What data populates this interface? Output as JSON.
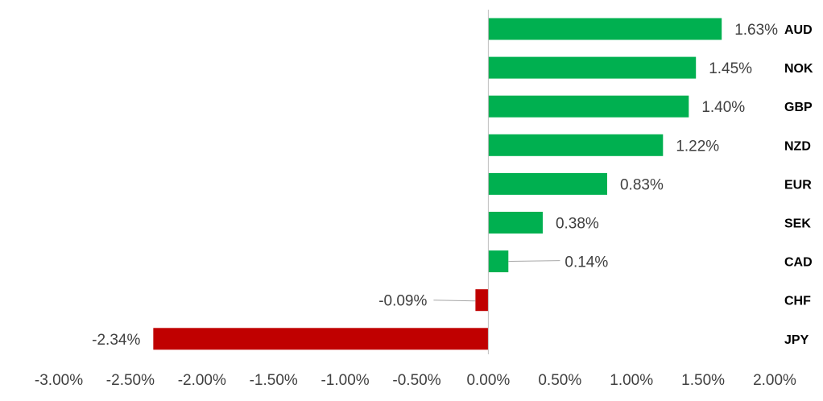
{
  "chart_data": {
    "type": "bar",
    "orientation": "horizontal",
    "categories": [
      "AUD",
      "NOK",
      "GBP",
      "NZD",
      "EUR",
      "SEK",
      "CAD",
      "CHF",
      "JPY"
    ],
    "values": [
      1.63,
      1.45,
      1.4,
      1.22,
      0.83,
      0.38,
      0.14,
      -0.09,
      -2.34
    ],
    "value_labels": [
      "1.63%",
      "1.45%",
      "1.40%",
      "1.22%",
      "0.83%",
      "0.38%",
      "0.14%",
      "-0.09%",
      "-2.34%"
    ],
    "x_ticks": [
      -3.0,
      -2.5,
      -2.0,
      -1.5,
      -1.0,
      -0.5,
      0.0,
      0.5,
      1.0,
      1.5,
      2.0
    ],
    "x_tick_labels": [
      "-3.00%",
      "-2.50%",
      "-2.00%",
      "-1.50%",
      "-1.00%",
      "-0.50%",
      "0.00%",
      "0.50%",
      "1.00%",
      "1.50%",
      "2.00%"
    ],
    "xlim": [
      -3.0,
      2.0
    ],
    "title": "",
    "xlabel": "",
    "ylabel": "",
    "grid": false,
    "legend": "none",
    "colors": {
      "positive": "#00b050",
      "negative": "#c00000",
      "axis": "#bfbfbf",
      "leader": "#a6a6a6"
    }
  }
}
